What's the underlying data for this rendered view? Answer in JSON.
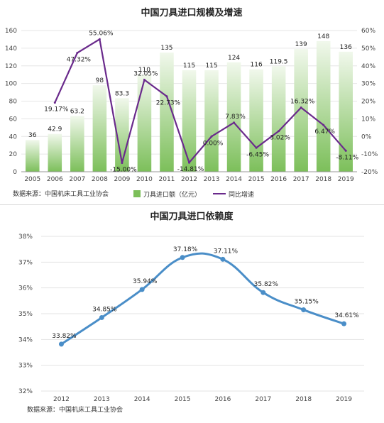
{
  "chart_data": [
    {
      "type": "bar",
      "title": "中国刀具进口规模及增速",
      "categories": [
        "2005",
        "2006",
        "2007",
        "2008",
        "2009",
        "2010",
        "2011",
        "2012",
        "2013",
        "2014",
        "2015",
        "2016",
        "2017",
        "2018",
        "2019"
      ],
      "series": [
        {
          "name": "刀具进口额（亿元）",
          "type": "bar",
          "axis": "left",
          "color": "#7cbf5a",
          "values": [
            36,
            42.9,
            63.2,
            98,
            83.3,
            110,
            135,
            115,
            115,
            124,
            116,
            119.5,
            139,
            148,
            136
          ],
          "labels": [
            "36",
            "42.9",
            "63.2",
            "98",
            "83.3",
            "110",
            "135",
            "115",
            "115",
            "124",
            "116",
            "119.5",
            "139",
            "148",
            "136"
          ]
        },
        {
          "name": "同比增速",
          "type": "line",
          "axis": "right",
          "color": "#6a2a8c",
          "x": [
            "2006",
            "2007",
            "2008",
            "2009",
            "2010",
            "2011",
            "2012",
            "2013",
            "2014",
            "2015",
            "2016",
            "2017",
            "2018",
            "2019"
          ],
          "values": [
            19.17,
            47.32,
            55.06,
            -15.0,
            32.05,
            22.73,
            -14.81,
            0.0,
            7.83,
            -6.45,
            3.02,
            16.32,
            6.47,
            -8.11
          ],
          "labels": [
            "19.17%",
            "47.32%",
            "55.06%",
            "-15.00%",
            "32.05%",
            "22.73%",
            "-14.81%",
            "0.00%",
            "7.83%",
            "-6.45%",
            "3.02%",
            "16.32%",
            "6.47%",
            "-8.11%"
          ]
        }
      ],
      "y_left_ticks": [
        "0",
        "20",
        "40",
        "60",
        "80",
        "100",
        "120",
        "140",
        "160"
      ],
      "ylim_left": [
        0,
        160
      ],
      "y_right_ticks": [
        "-20%",
        "-10%",
        "0%",
        "10%",
        "20%",
        "30%",
        "40%",
        "50%",
        "60%"
      ],
      "ylim_right": [
        -20,
        60
      ],
      "legend_position": "bottom",
      "source": "数据来源：中国机床工具工业协会"
    },
    {
      "type": "line",
      "title": "中国刀具进口依赖度",
      "x": [
        "2012",
        "2013",
        "2014",
        "2015",
        "2016",
        "2017",
        "2018",
        "2019"
      ],
      "series": [
        {
          "color": "#4a8ec8",
          "values": [
            33.82,
            34.85,
            35.94,
            37.18,
            37.11,
            35.82,
            35.15,
            34.61
          ],
          "labels": [
            "33.82%",
            "34.85%",
            "35.94%",
            "37.18%",
            "37.11%",
            "35.82%",
            "35.15%",
            "34.61%"
          ]
        }
      ],
      "y_ticks": [
        "32%",
        "33%",
        "34%",
        "35%",
        "36%",
        "37%",
        "38%"
      ],
      "ylim": [
        32,
        38
      ],
      "grid": true,
      "source": "数据来源：中国机床工具工业协会"
    }
  ]
}
